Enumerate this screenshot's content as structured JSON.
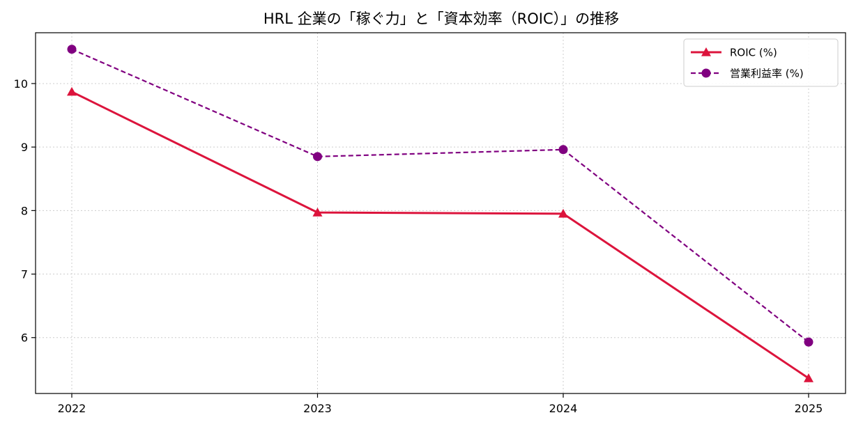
{
  "chart_data": {
    "type": "line",
    "title": "HRL 企業の「稼ぐ力」と「資本効率（ROIC）」の推移",
    "xlabel": "",
    "ylabel": "",
    "x": [
      "2022",
      "2023",
      "2024",
      "2025"
    ],
    "yticks": [
      6,
      7,
      8,
      9,
      10
    ],
    "ylim": [
      5.12,
      10.8
    ],
    "grid": true,
    "legend_position": "top-right",
    "series": [
      {
        "name": "ROIC (%)",
        "values": [
          9.87,
          7.97,
          7.95,
          5.36
        ],
        "color": "#dc143c",
        "marker": "triangle",
        "line_style": "solid"
      },
      {
        "name": "営業利益率 (%)",
        "values": [
          10.54,
          8.85,
          8.96,
          5.93
        ],
        "color": "#800080",
        "marker": "circle",
        "line_style": "dashed"
      }
    ]
  }
}
